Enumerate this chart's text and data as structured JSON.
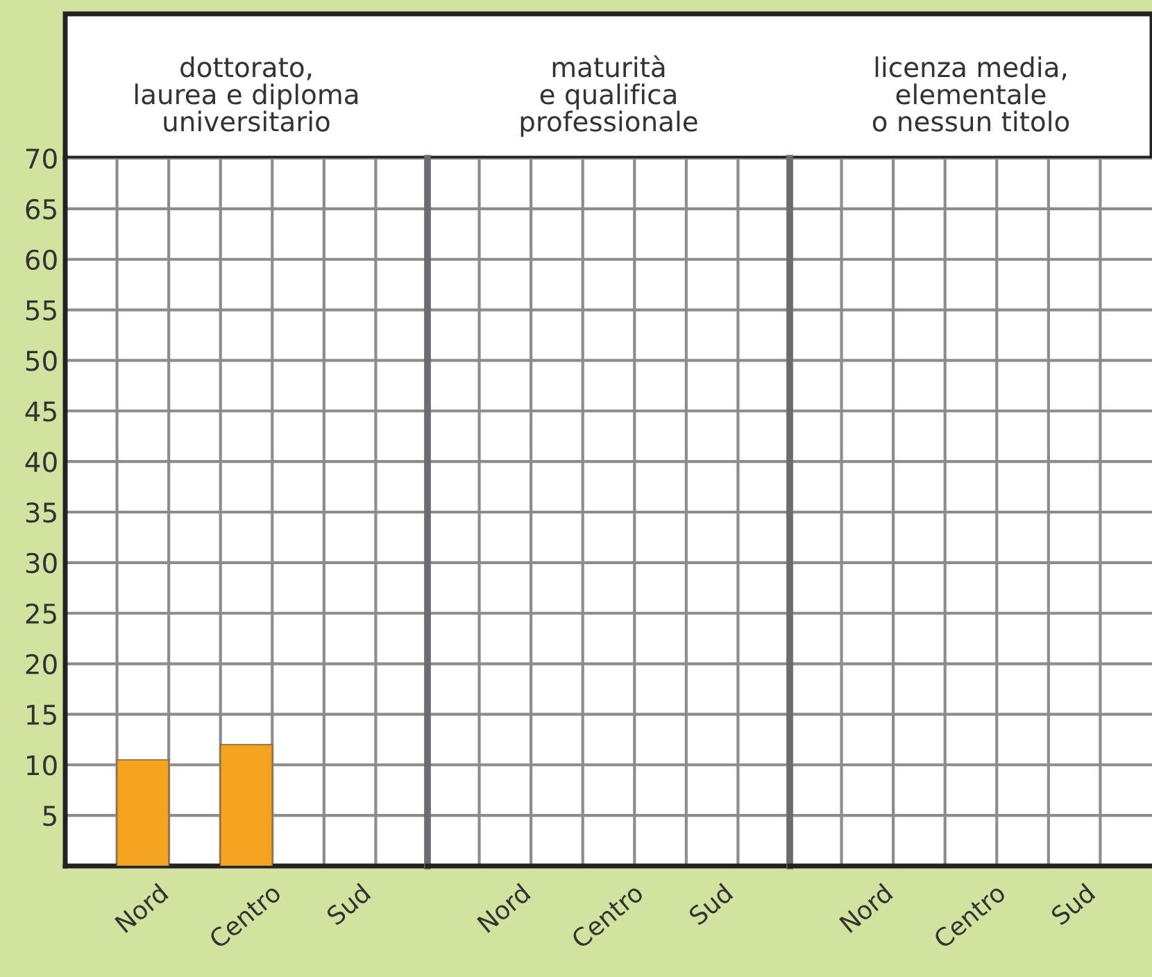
{
  "chart_data": [
    {
      "type": "bar",
      "title": "dottorato,\nlaurea e diploma\nuniversitario",
      "categories": [
        "Nord",
        "Centro",
        "Sud"
      ],
      "values": [
        10.5,
        12,
        null
      ],
      "color": "#f5a41f",
      "ylim": [
        0,
        70
      ],
      "yticks": [
        5,
        10,
        15,
        20,
        25,
        30,
        35,
        40,
        45,
        50,
        55,
        60,
        65,
        70
      ],
      "grid": true
    },
    {
      "type": "bar",
      "title": "maturità\ne qualifica\nprofessionale",
      "categories": [
        "Nord",
        "Centro",
        "Sud"
      ],
      "values": [
        null,
        null,
        null
      ],
      "color": "#f5a41f",
      "ylim": [
        0,
        70
      ],
      "yticks": [
        5,
        10,
        15,
        20,
        25,
        30,
        35,
        40,
        45,
        50,
        55,
        60,
        65,
        70
      ],
      "grid": true,
      "tick_labels": "x"
    },
    {
      "type": "bar",
      "title": "licenza media,\nelementale\no nessun titolo",
      "categories": [
        "Nord",
        "Centro",
        "Sud"
      ],
      "values": [
        null,
        null,
        null
      ],
      "color": "#f5a41f",
      "ylim": [
        0,
        70
      ],
      "yticks": [
        5,
        10,
        15,
        20,
        25,
        30,
        35,
        40,
        45,
        50,
        55,
        60,
        65,
        70
      ],
      "grid": true,
      "tick_labels": "x"
    }
  ]
}
